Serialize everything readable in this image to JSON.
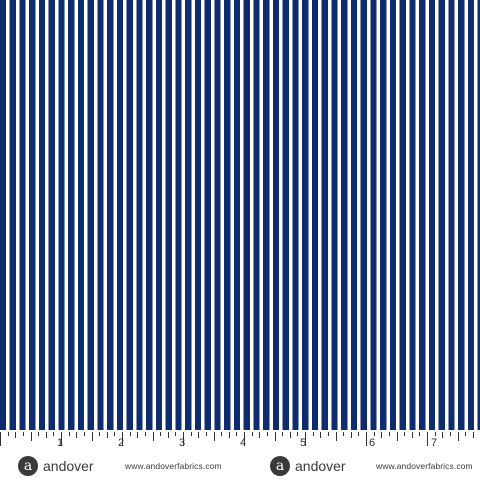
{
  "fabric": {
    "stripe_color": "#0f2d6e",
    "background_color": "#ffffff"
  },
  "ruler": {
    "numbers": [
      "1",
      "2",
      "3",
      "4",
      "5",
      "6",
      "7"
    ]
  },
  "selvage": {
    "brand_mark": "a",
    "brand_name": "andover",
    "website": "www.andoverfabrics.com"
  }
}
